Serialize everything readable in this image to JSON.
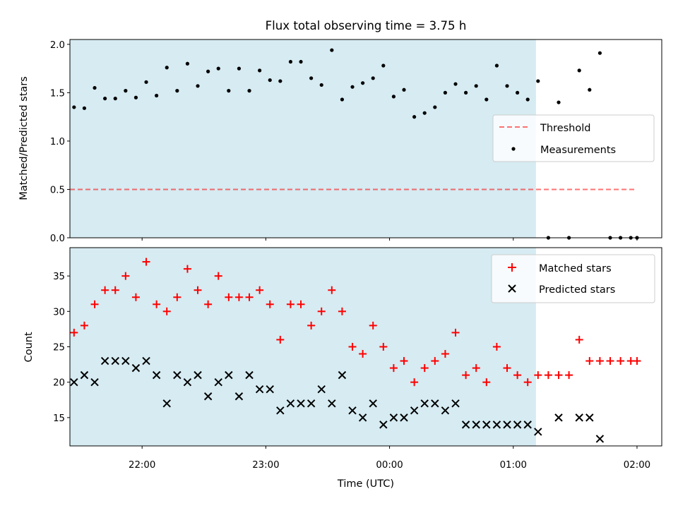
{
  "colors": {
    "span": "#add8e6",
    "threshold": "#ff0000",
    "matched": "#ff0000",
    "predicted": "#000000",
    "measurements": "#000000",
    "legend_border": "#cccccc"
  },
  "chart_data": [
    {
      "type": "scatter",
      "title": "Flux total observing time = 3.75 h",
      "xlabel": "",
      "ylabel": "Matched/Predicted stars",
      "ylim": [
        0,
        2.05
      ],
      "yticks": [
        "0.0",
        "0.5",
        "1.0",
        "1.5",
        "2.0"
      ],
      "x_axis": "shared time axis (UTC), from 21:25 to 02:12",
      "shaded_span": [
        "21:25",
        "01:11"
      ],
      "legend_position": "center right",
      "threshold": {
        "name": "Threshold",
        "value": 0.5,
        "x_range": [
          "21:25",
          "01:59"
        ],
        "style": "dashed"
      },
      "series": [
        {
          "name": "Measurements",
          "marker": "dot",
          "x": [
            "21:27",
            "21:32",
            "21:37",
            "21:42",
            "21:47",
            "21:52",
            "21:57",
            "22:02",
            "22:07",
            "22:12",
            "22:17",
            "22:22",
            "22:27",
            "22:32",
            "22:37",
            "22:42",
            "22:47",
            "22:52",
            "22:57",
            "23:02",
            "23:07",
            "23:12",
            "23:17",
            "23:22",
            "23:27",
            "23:32",
            "23:37",
            "23:42",
            "23:47",
            "23:52",
            "23:57",
            "00:02",
            "00:07",
            "00:12",
            "00:17",
            "00:22",
            "00:27",
            "00:32",
            "00:37",
            "00:42",
            "00:47",
            "00:52",
            "00:57",
            "01:02",
            "01:07",
            "01:12",
            "01:17",
            "01:22",
            "01:27",
            "01:32",
            "01:37",
            "01:42",
            "01:47",
            "01:52",
            "01:57",
            "02:00"
          ],
          "y": [
            1.35,
            1.34,
            1.55,
            1.44,
            1.44,
            1.52,
            1.45,
            1.61,
            1.47,
            1.76,
            1.52,
            1.8,
            1.57,
            1.72,
            1.75,
            1.52,
            1.75,
            1.52,
            1.73,
            1.63,
            1.62,
            1.82,
            1.82,
            1.65,
            1.58,
            1.94,
            1.43,
            1.56,
            1.6,
            1.65,
            1.78,
            1.46,
            1.53,
            1.25,
            1.29,
            1.35,
            1.5,
            1.59,
            1.5,
            1.57,
            1.43,
            1.78,
            1.57,
            1.5,
            1.43,
            1.62,
            0.0,
            1.4,
            0.0,
            1.73,
            1.53,
            1.91,
            0.0,
            0.0,
            0.0,
            0.0
          ]
        }
      ]
    },
    {
      "type": "scatter",
      "title": "",
      "xlabel": "Time (UTC)",
      "ylabel": "Count",
      "ylim": [
        11,
        39
      ],
      "yticks": [
        "15",
        "20",
        "25",
        "30",
        "35"
      ],
      "xticks": [
        "22:00",
        "23:00",
        "00:00",
        "01:00",
        "02:00"
      ],
      "legend_position": "upper right",
      "series": [
        {
          "name": "Matched stars",
          "marker": "plus",
          "x": [
            "21:27",
            "21:32",
            "21:37",
            "21:42",
            "21:47",
            "21:52",
            "21:57",
            "22:02",
            "22:07",
            "22:12",
            "22:17",
            "22:22",
            "22:27",
            "22:32",
            "22:37",
            "22:42",
            "22:47",
            "22:52",
            "22:57",
            "23:02",
            "23:07",
            "23:12",
            "23:17",
            "23:22",
            "23:27",
            "23:32",
            "23:37",
            "23:42",
            "23:47",
            "23:52",
            "23:57",
            "00:02",
            "00:07",
            "00:12",
            "00:17",
            "00:22",
            "00:27",
            "00:32",
            "00:37",
            "00:42",
            "00:47",
            "00:52",
            "00:57",
            "01:02",
            "01:07",
            "01:12",
            "01:17",
            "01:22",
            "01:27",
            "01:32",
            "01:37",
            "01:42",
            "01:47",
            "01:52",
            "01:57",
            "02:00"
          ],
          "y": [
            27,
            28,
            31,
            33,
            33,
            35,
            32,
            37,
            31,
            30,
            32,
            36,
            33,
            31,
            35,
            32,
            32,
            32,
            33,
            31,
            26,
            31,
            31,
            28,
            30,
            33,
            30,
            25,
            24,
            28,
            25,
            22,
            23,
            20,
            22,
            23,
            24,
            27,
            21,
            22,
            20,
            25,
            22,
            21,
            20,
            21,
            21,
            21,
            21,
            26,
            23,
            23,
            23,
            23,
            23,
            23
          ]
        },
        {
          "name": "Predicted stars",
          "marker": "x",
          "x": [
            "21:27",
            "21:32",
            "21:37",
            "21:42",
            "21:47",
            "21:52",
            "21:57",
            "22:02",
            "22:07",
            "22:12",
            "22:17",
            "22:22",
            "22:27",
            "22:32",
            "22:37",
            "22:42",
            "22:47",
            "22:52",
            "22:57",
            "23:02",
            "23:07",
            "23:12",
            "23:17",
            "23:22",
            "23:27",
            "23:32",
            "23:37",
            "23:42",
            "23:47",
            "23:52",
            "23:57",
            "00:02",
            "00:07",
            "00:12",
            "00:17",
            "00:22",
            "00:27",
            "00:32",
            "00:37",
            "00:42",
            "00:47",
            "00:52",
            "00:57",
            "01:02",
            "01:07",
            "01:12",
            "01:22",
            "01:32",
            "01:37",
            "01:42"
          ],
          "y": [
            20,
            21,
            20,
            23,
            23,
            23,
            22,
            23,
            21,
            17,
            21,
            20,
            21,
            18,
            20,
            21,
            18,
            21,
            19,
            19,
            16,
            17,
            17,
            17,
            19,
            17,
            21,
            16,
            15,
            17,
            14,
            15,
            15,
            16,
            17,
            17,
            16,
            17,
            14,
            14,
            14,
            14,
            14,
            14,
            14,
            13,
            15,
            15,
            15,
            12
          ]
        }
      ]
    }
  ]
}
